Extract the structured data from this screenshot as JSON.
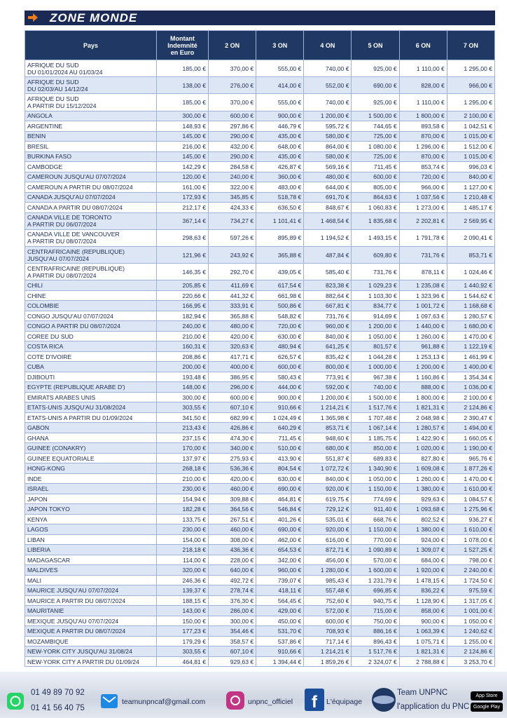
{
  "header": {
    "title": "ZONE MONDE"
  },
  "table": {
    "columns": [
      "Pays",
      "Montant\nIndemnité\nen Euro",
      "2 ON",
      "3 ON",
      "4 ON",
      "5 ON",
      "6 ON",
      "7 ON"
    ],
    "rows": [
      [
        "AFRIQUE DU SUD\nDU 01/01/2024  AU 01/03/24",
        "185,00 €",
        "370,00 €",
        "555,00 €",
        "740,00 €",
        "925,00 €",
        "1 110,00 €",
        "1 295,00 €"
      ],
      [
        "AFRIQUE DU SUD\nDU 02/03/AU 14/12/24",
        "138,00 €",
        "276,00 €",
        "414,00 €",
        "552,00 €",
        "690,00 €",
        "828,00 €",
        "966,00 €"
      ],
      [
        "AFRIQUE DU SUD\nA PARTIR DU 15/12/2024",
        "185,00 €",
        "370,00 €",
        "555,00 €",
        "740,00 €",
        "925,00 €",
        "1 110,00 €",
        "1 295,00 €"
      ],
      [
        "ANGOLA",
        "300,00 €",
        "600,00 €",
        "900,00 €",
        "1 200,00 €",
        "1 500,00 €",
        "1 800,00 €",
        "2 100,00 €"
      ],
      [
        "ARGENTINE",
        "148,93 €",
        "297,86 €",
        "446,79 €",
        "595,72 €",
        "744,65 €",
        "893,58 €",
        "1 042,51 €"
      ],
      [
        "BENIN",
        "145,00 €",
        "290,00 €",
        "435,00 €",
        "580,00 €",
        "725,00 €",
        "870,00 €",
        "1 015,00 €"
      ],
      [
        "BRESIL",
        "216,00 €",
        "432,00 €",
        "648,00 €",
        "864,00 €",
        "1 080,00 €",
        "1 296,00 €",
        "1 512,00 €"
      ],
      [
        "BURKINA FASO",
        "145,00 €",
        "290,00 €",
        "435,00 €",
        "580,00 €",
        "725,00 €",
        "870,00 €",
        "1 015,00 €"
      ],
      [
        "CAMBODGE",
        "142,29 €",
        "284,58 €",
        "426,87 €",
        "569,16 €",
        "711,45 €",
        "853,74 €",
        "996,03 €"
      ],
      [
        "CAMEROUN JUSQU'AU 07/07/2024",
        "120,00 €",
        "240,00 €",
        "360,00 €",
        "480,00 €",
        "600,00 €",
        "720,00 €",
        "840,00 €"
      ],
      [
        "CAMEROUN A PARTIR DU 08/07/2024",
        "161,00 €",
        "322,00 €",
        "483,00 €",
        "644,00 €",
        "805,00 €",
        "966,00 €",
        "1 127,00 €"
      ],
      [
        "CANADA JUSQU'AU 07/07/2024",
        "172,93 €",
        "345,85 €",
        "518,78 €",
        "691,70 €",
        "864,63 €",
        "1 037,56 €",
        "1 210,48 €"
      ],
      [
        "CANADA A PARTIR DU 08/07/2024",
        "212,17 €",
        "424,33 €",
        "636,50 €",
        "848,67 €",
        "1 060,83 €",
        "1 273,00 €",
        "1 485,17 €"
      ],
      [
        "CANADA VILLE DE TORONTO\nA PARTIR DU 06/07/2024",
        "367,14 €",
        "734,27 €",
        "1 101,41 €",
        "1 468,54 €",
        "1 835,68 €",
        "2 202,81 €",
        "2 569,95 €"
      ],
      [
        "CANADA VILLE DE VANCOUVER\nA PARTIR DU 08/07/2024",
        "298,63 €",
        "597,26 €",
        "895,89 €",
        "1 194,52 €",
        "1 493,15 €",
        "1 791,78 €",
        "2 090,41 €"
      ],
      [
        "CENTRAFRICAINE (REPUBLIQUE)\nJUSQU'AU 07/07/2024",
        "121,96 €",
        "243,92 €",
        "365,88 €",
        "487,84 €",
        "609,80 €",
        "731,76 €",
        "853,71 €"
      ],
      [
        "CENTRAFRICAINE (REPUBLIQUE)\nA PARTIR DU 08/07/2024",
        "146,35 €",
        "292,70 €",
        "439,05 €",
        "585,40 €",
        "731,76 €",
        "878,11 €",
        "1 024,46 €"
      ],
      [
        "CHILI",
        "205,85 €",
        "411,69 €",
        "617,54 €",
        "823,38 €",
        "1 029,23 €",
        "1 235,08 €",
        "1 440,92 €"
      ],
      [
        "CHINE",
        "220,66 €",
        "441,32 €",
        "661,98 €",
        "882,64 €",
        "1 103,30 €",
        "1 323,96 €",
        "1 544,62 €"
      ],
      [
        "COLOMBIE",
        "166,95 €",
        "333,91 €",
        "500,86 €",
        "667,81 €",
        "834,77 €",
        "1 001,72 €",
        "1 168,68 €"
      ],
      [
        "CONGO JUSQU'AU 07/07/2024",
        "182,94 €",
        "365,88 €",
        "548,82 €",
        "731,76 €",
        "914,69 €",
        "1 097,63 €",
        "1 280,57 €"
      ],
      [
        "CONGO A PARTIR DU 08/07/2024",
        "240,00 €",
        "480,00 €",
        "720,00 €",
        "960,00 €",
        "1 200,00 €",
        "1 440,00 €",
        "1 680,00 €"
      ],
      [
        "COREE DU SUD",
        "210,00 €",
        "420,00 €",
        "630,00 €",
        "840,00 €",
        "1 050,00 €",
        "1 260,00 €",
        "1 470,00 €"
      ],
      [
        "COSTA RICA",
        "160,31 €",
        "320,63 €",
        "480,94 €",
        "641,25 €",
        "801,57 €",
        "961,88 €",
        "1 122,19 €"
      ],
      [
        "COTE D'IVOIRE",
        "208,86 €",
        "417,71 €",
        "626,57 €",
        "835,42 €",
        "1 044,28 €",
        "1 253,13 €",
        "1 461,99 €"
      ],
      [
        "CUBA",
        "200,00 €",
        "400,00 €",
        "600,00 €",
        "800,00 €",
        "1 000,00 €",
        "1 200,00 €",
        "1 400,00 €"
      ],
      [
        "DJIBOUTI",
        "193,48 €",
        "386,95 €",
        "580,43 €",
        "773,91 €",
        "967,38 €",
        "1 160,86 €",
        "1 354,34 €"
      ],
      [
        "EGYPTE (REPUBLIQUE ARABE D')",
        "148,00 €",
        "296,00 €",
        "444,00 €",
        "592,00 €",
        "740,00 €",
        "888,00 €",
        "1 036,00 €"
      ],
      [
        "EMIRATS ARABES UNIS",
        "300,00 €",
        "600,00 €",
        "900,00 €",
        "1 200,00 €",
        "1 500,00 €",
        "1 800,00 €",
        "2 100,00 €"
      ],
      [
        "ETATS-UNIS JUSQU'AU 31/08/2024",
        "303,55 €",
        "607,10 €",
        "910,66 €",
        "1 214,21 €",
        "1 517,76 €",
        "1 821,31 €",
        "2 124,86 €"
      ],
      [
        "ETATS-UNIS A PARTIR DU 01/09/2024",
        "341,50 €",
        "682,99 €",
        "1 024,49 €",
        "1 365,98 €",
        "1 707,48 €",
        "2 048,98 €",
        "2 390,47 €"
      ],
      [
        "GABON",
        "213,43 €",
        "426,86 €",
        "640,29 €",
        "853,71 €",
        "1 067,14 €",
        "1 280,57 €",
        "1 494,00 €"
      ],
      [
        "GHANA",
        "237,15 €",
        "474,30 €",
        "711,45 €",
        "948,60 €",
        "1 185,75 €",
        "1 422,90 €",
        "1 660,05 €"
      ],
      [
        "GUINEE (CONAKRY)",
        "170,00 €",
        "340,00 €",
        "510,00 €",
        "680,00 €",
        "850,00 €",
        "1 020,00 €",
        "1 190,00 €"
      ],
      [
        "GUINEE EQUATORIALE",
        "137,97 €",
        "275,93 €",
        "413,90 €",
        "551,87 €",
        "689,83 €",
        "827,80 €",
        "965,76 €"
      ],
      [
        "HONG-KONG",
        "268,18 €",
        "536,36 €",
        "804,54 €",
        "1 072,72 €",
        "1 340,90 €",
        "1 609,08 €",
        "1 877,26 €"
      ],
      [
        "INDE",
        "210,00 €",
        "420,00 €",
        "630,00 €",
        "840,00 €",
        "1 050,00 €",
        "1 260,00 €",
        "1 470,00 €"
      ],
      [
        "ISRAEL",
        "230,00 €",
        "460,00 €",
        "690,00 €",
        "920,00 €",
        "1 150,00 €",
        "1 380,00 €",
        "1 610,00 €"
      ],
      [
        "JAPON",
        "154,94 €",
        "309,88 €",
        "464,81 €",
        "619,75 €",
        "774,69 €",
        "929,63 €",
        "1 084,57 €"
      ],
      [
        "JAPON TOKYO",
        "182,28 €",
        "364,56 €",
        "546,84 €",
        "729,12 €",
        "911,40 €",
        "1 093,68 €",
        "1 275,96 €"
      ],
      [
        "KENYA",
        "133,75 €",
        "267,51 €",
        "401,26 €",
        "535,01 €",
        "668,76 €",
        "802,52 €",
        "936,27 €"
      ],
      [
        "LAGOS",
        "230,00 €",
        "460,00 €",
        "690,00 €",
        "920,00 €",
        "1 150,00 €",
        "1 380,00 €",
        "1 610,00 €"
      ],
      [
        "LIBAN",
        "154,00 €",
        "308,00 €",
        "462,00 €",
        "616,00 €",
        "770,00 €",
        "924,00 €",
        "1 078,00 €"
      ],
      [
        "LIBERIA",
        "218,18 €",
        "436,36 €",
        "654,53 €",
        "872,71 €",
        "1 090,89 €",
        "1 309,07 €",
        "1 527,25 €"
      ],
      [
        "MADAGASCAR",
        "114,00 €",
        "228,00 €",
        "342,00 €",
        "456,00 €",
        "570,00 €",
        "684,00 €",
        "798,00 €"
      ],
      [
        "MALDIVES",
        "320,00 €",
        "640,00 €",
        "960,00 €",
        "1 280,00 €",
        "1 600,00 €",
        "1 920,00 €",
        "2 240,00 €"
      ],
      [
        "MALI",
        "246,36 €",
        "492,72 €",
        "739,07 €",
        "985,43 €",
        "1 231,79 €",
        "1 478,15 €",
        "1 724,50 €"
      ],
      [
        "MAURICE JUSQU'AU 07/07/2024",
        "139,37 €",
        "278,74 €",
        "418,11 €",
        "557,48 €",
        "696,85 €",
        "836,22 €",
        "975,59 €"
      ],
      [
        "MAURICE A PARTIR DU 08/07/2024",
        "188,15 €",
        "376,30 €",
        "564,45 €",
        "752,60 €",
        "940,75 €",
        "1 128,90 €",
        "1 317,05 €"
      ],
      [
        "MAURITANIE",
        "143,00 €",
        "286,00 €",
        "429,00 €",
        "572,00 €",
        "715,00 €",
        "858,00 €",
        "1 001,00 €"
      ],
      [
        "MEXIQUE JUSQU'AU 07/07/2024",
        "150,00 €",
        "300,00 €",
        "450,00 €",
        "600,00 €",
        "750,00 €",
        "900,00 €",
        "1 050,00 €"
      ],
      [
        "MEXIQUE A PARTIR DU 08/07/2024",
        "177,23 €",
        "354,46 €",
        "531,70 €",
        "708,93 €",
        "886,16 €",
        "1 063,39 €",
        "1 240,62 €"
      ],
      [
        "MOZAMBIQUE",
        "179,29 €",
        "358,57 €",
        "537,86 €",
        "717,14 €",
        "896,43 €",
        "1 075,71 €",
        "1 255,00 €"
      ],
      [
        "NEW-YORK CITY JUSQU'AU 31/08/24",
        "303,55 €",
        "607,10 €",
        "910,66 €",
        "1 214,21 €",
        "1 517,76 €",
        "1 821,31 €",
        "2 124,86 €"
      ],
      [
        "NEW-YORK CITY A PARTIR DU 01/09/24",
        "464,81 €",
        "929,63 €",
        "1 394,44 €",
        "1 859,26 €",
        "2 324,07 €",
        "2 788,88 €",
        "3 253,70 €"
      ]
    ]
  },
  "footer": {
    "phone1": "01 49 89 70 92",
    "phone2": "01 41 56 40 75",
    "email": "teamunpncaf@gmail.com",
    "instagram": "unpnc_officiel",
    "facebook": "L'équipage",
    "app_title": "Team UNPNC",
    "app_subtitle": "l'application du PNC",
    "app_store": "App Store",
    "google_play": "Google Play"
  }
}
